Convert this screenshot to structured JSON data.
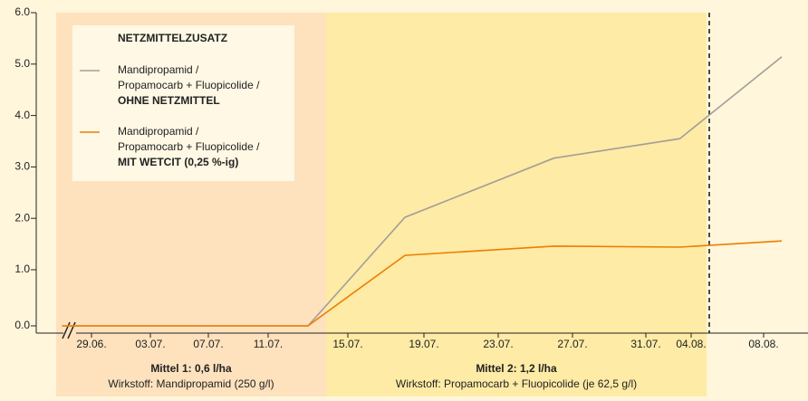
{
  "chart_data": {
    "type": "line",
    "x": [
      "27.06.",
      "13.07.",
      "18.07.",
      "26.07.",
      "03.08.",
      "09.08."
    ],
    "series": [
      {
        "name": [
          "Mandipropamid /",
          "Propamocarb + Fluopicolide /",
          "OHNE NETZMITTEL"
        ],
        "color": "#a39e96",
        "values": [
          0,
          0,
          2.02,
          3.17,
          3.55,
          5.14
        ]
      },
      {
        "name": [
          "Mandipropamid /",
          "Propamocarb + Fluopicolide /",
          "MIT WETCIT  (0,25 %-ig)"
        ],
        "color": "#ef7d00",
        "values": [
          0,
          0,
          1.28,
          1.46,
          1.44,
          1.56
        ]
      }
    ],
    "legend_title": "NETZMITTELZUSATZ",
    "ylim": [
      0,
      6
    ],
    "yticks": [
      {
        "value": 0,
        "label": "0.0"
      },
      {
        "value": 1,
        "label": "1.0"
      },
      {
        "value": 2,
        "label": "2.0"
      },
      {
        "value": 3,
        "label": "3.0"
      },
      {
        "value": 4,
        "label": "4.0"
      },
      {
        "value": 5,
        "label": "5.0"
      },
      {
        "value": 6,
        "label": "6.0"
      }
    ],
    "xticks": [
      "29.06.",
      "03.07.",
      "07.07.",
      "11.07.",
      "15.07.",
      "19.07.",
      "23.07.",
      "27.07.",
      "31.07.",
      "04.08.",
      "08.08."
    ],
    "vline": "05.08.",
    "regions": [
      {
        "label": "Mittel 1: 0,6 l/ha",
        "sublabel": "Wirkstoff: Mandipropamid (250 g/l)"
      },
      {
        "label": "Mittel 2: 1,2 l/ha",
        "sublabel": "Wirkstoff: Propamocarb + Fluopicolide (je 62,5 g/l)"
      }
    ]
  }
}
